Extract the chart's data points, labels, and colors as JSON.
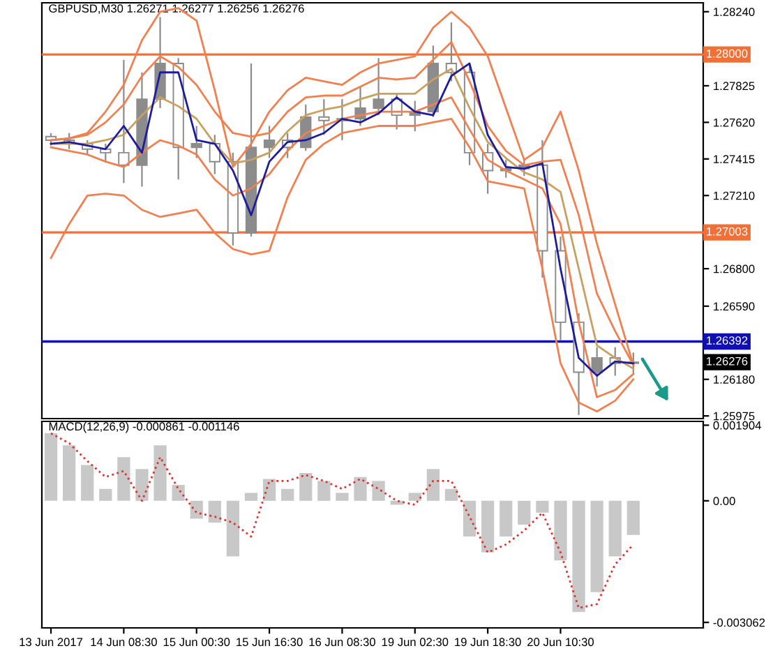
{
  "chart_data": [
    {
      "type": "candlestick",
      "title": "GBPUSD,M30 1.26271 1.26277 1.26256 1.26276",
      "color": "#8c8c8c",
      "categories": [
        null,
        null,
        null,
        null,
        null,
        null,
        null,
        null,
        null,
        null,
        null,
        null,
        null,
        null,
        null,
        null,
        null,
        null,
        null,
        null,
        null,
        null,
        null,
        null,
        null,
        null,
        null,
        null,
        null,
        null,
        null,
        null,
        null
      ],
      "ohlc": [
        [
          1.2754,
          1.2756,
          1.2749,
          1.2752
        ],
        [
          1.2752,
          1.2756,
          1.2747,
          1.275
        ],
        [
          1.275,
          1.2752,
          1.2744,
          1.2747
        ],
        [
          1.2747,
          1.275,
          1.274,
          1.2745
        ],
        [
          1.2745,
          1.2797,
          1.2728,
          1.2738
        ],
        [
          1.2738,
          1.279,
          1.2726,
          1.2775
        ],
        [
          1.2775,
          1.2821,
          1.277,
          1.2795
        ],
        [
          1.2795,
          1.2798,
          1.273,
          1.2748
        ],
        [
          1.2748,
          1.276,
          1.2742,
          1.275
        ],
        [
          1.275,
          1.2755,
          1.2733,
          1.274
        ],
        [
          1.274,
          1.2745,
          1.2693,
          1.27
        ],
        [
          1.27,
          1.2795,
          1.2698,
          1.2748
        ],
        [
          1.2748,
          1.276,
          1.2742,
          1.2752
        ],
        [
          1.2752,
          1.2756,
          1.2742,
          1.2748
        ],
        [
          1.2748,
          1.2772,
          1.2746,
          1.2765
        ],
        [
          1.2765,
          1.2775,
          1.2755,
          1.2763
        ],
        [
          1.2763,
          1.2775,
          1.2752,
          1.2764
        ],
        [
          1.2764,
          1.2782,
          1.276,
          1.277
        ],
        [
          1.277,
          1.2798,
          1.2766,
          1.2775
        ],
        [
          1.2775,
          1.2778,
          1.2758,
          1.2766
        ],
        [
          1.2766,
          1.2774,
          1.2757,
          1.2768
        ],
        [
          1.2768,
          1.2805,
          1.2765,
          1.2795
        ],
        [
          1.2795,
          1.2818,
          1.2785,
          1.279
        ],
        [
          1.279,
          1.2795,
          1.2738,
          1.2745
        ],
        [
          1.2745,
          1.275,
          1.2722,
          1.2735
        ],
        [
          1.2735,
          1.2741,
          1.2731,
          1.2736
        ],
        [
          1.2736,
          1.2742,
          1.2732,
          1.2738
        ],
        [
          1.2738,
          1.2752,
          1.2675,
          1.269
        ],
        [
          1.269,
          1.2698,
          1.264,
          1.265
        ],
        [
          1.265,
          1.2655,
          1.2598,
          1.2622
        ],
        [
          1.2622,
          1.2636,
          1.2614,
          1.263
        ],
        [
          1.263,
          1.2636,
          1.262,
          1.2627
        ],
        [
          1.2627,
          1.2633,
          1.2621,
          1.26276
        ]
      ],
      "series": [
        {
          "type": "line",
          "color": "#f08050",
          "values": [
            1.2752,
            1.2753,
            1.2756,
            1.2768,
            1.2783,
            1.2808,
            1.2824,
            1.2826,
            1.2819,
            1.278,
            1.2737,
            1.275,
            1.2768,
            1.278,
            1.2787,
            1.2785,
            1.2783,
            1.279,
            1.2795,
            1.2797,
            1.2799,
            1.2815,
            1.2824,
            1.2815,
            1.2799,
            1.277,
            1.2741,
            1.2748,
            1.2768,
            1.2735,
            1.2694,
            1.266,
            1.2626
          ]
        },
        {
          "type": "line",
          "color": "#f08050",
          "values": [
            1.2686,
            1.2705,
            1.2721,
            1.2722,
            1.2721,
            1.2713,
            1.2709,
            1.2711,
            1.2713,
            1.27,
            1.2691,
            1.2688,
            1.269,
            1.272,
            1.2741,
            1.275,
            1.2756,
            1.2758,
            1.276,
            1.276,
            1.276,
            1.2762,
            1.2764,
            1.2748,
            1.2729,
            1.2727,
            1.2725,
            1.268,
            1.2627,
            1.2605,
            1.26,
            1.2606,
            1.2618
          ]
        },
        {
          "type": "line",
          "color": "#f08050",
          "values": [
            1.2752,
            1.2753,
            1.2755,
            1.2762,
            1.2772,
            1.2788,
            1.2799,
            1.2793,
            1.2783,
            1.2768,
            1.2756,
            1.2754,
            1.2756,
            1.2768,
            1.2776,
            1.2777,
            1.2777,
            1.2782,
            1.2787,
            1.2786,
            1.2787,
            1.2797,
            1.2807,
            1.2785,
            1.276,
            1.2746,
            1.2738,
            1.274,
            1.2741,
            1.271,
            1.2666,
            1.2645,
            1.2626
          ]
        },
        {
          "type": "line",
          "color": "#f08050",
          "values": [
            1.2748,
            1.2746,
            1.2744,
            1.274,
            1.2737,
            1.2745,
            1.2752,
            1.2749,
            1.2744,
            1.273,
            1.2721,
            1.2725,
            1.2733,
            1.2746,
            1.2756,
            1.276,
            1.2764,
            1.2766,
            1.2768,
            1.2768,
            1.2768,
            1.2772,
            1.2776,
            1.2758,
            1.2741,
            1.2735,
            1.273,
            1.2725,
            1.2705,
            1.265,
            1.2608,
            1.2612,
            1.2621
          ]
        },
        {
          "type": "line",
          "color": "#c8a060",
          "values": [
            1.275,
            1.275,
            1.275,
            1.2752,
            1.2755,
            1.2766,
            1.2776,
            1.2771,
            1.2764,
            1.275,
            1.2739,
            1.2741,
            1.2745,
            1.2757,
            1.2766,
            1.2769,
            1.2771,
            1.2775,
            1.2778,
            1.2778,
            1.2778,
            1.2786,
            1.2792,
            1.277,
            1.2751,
            1.2742,
            1.2734,
            1.273,
            1.2723,
            1.268,
            1.2637,
            1.263,
            1.2624
          ]
        },
        {
          "type": "line",
          "color": "#1c1c9c",
          "values": [
            1.275,
            1.2751,
            1.2749,
            1.2747,
            1.276,
            1.2745,
            1.279,
            1.279,
            1.2752,
            1.275,
            1.2735,
            1.271,
            1.274,
            1.2751,
            1.2752,
            1.2756,
            1.2764,
            1.2762,
            1.2767,
            1.2776,
            1.2768,
            1.2766,
            1.2788,
            1.2795,
            1.2755,
            1.2737,
            1.2736,
            1.2739,
            1.268,
            1.263,
            1.262,
            1.2628,
            1.2627
          ]
        }
      ],
      "ylim": [
        1.2596,
        1.2829
      ],
      "yticks": [
        {
          "value": 1.2824,
          "label": "1.28240"
        },
        1.27825,
        {
          "value": 1.2762,
          "label": "1.27620"
        },
        1.27415,
        {
          "value": 1.2721,
          "label": "1.27210"
        },
        {
          "value": 1.268,
          "label": "1.26800"
        },
        {
          "value": 1.2659,
          "label": "1.26590"
        },
        {
          "value": 1.2618,
          "label": "1.26180"
        },
        1.25975
      ],
      "ref_lines": [
        {
          "axis": "y",
          "value": 1.28,
          "label": "1.28000",
          "color": "#f07038"
        },
        {
          "axis": "y",
          "value": 1.27003,
          "label": "1.27003",
          "color": "#f07038"
        },
        {
          "axis": "y",
          "value": 1.26392,
          "label": "1.26392",
          "color": "#1010b0"
        }
      ],
      "annotations": [
        "1.26276"
      ],
      "tick_labels": "y",
      "grid": false
    },
    {
      "type": "bar",
      "title": "MACD(12,26,9) -0.000861 -0.001146",
      "color": "#c8c8c8",
      "categories": [
        "13 Jun 2017",
        null,
        null,
        null,
        "14 Jun 08:30",
        null,
        null,
        null,
        "15 Jun 00:30",
        null,
        null,
        null,
        "15 Jun 16:30",
        null,
        null,
        null,
        "16 Jun 08:30",
        null,
        null,
        null,
        "19 Jun 02:30",
        null,
        null,
        null,
        "19 Jun 18:30",
        null,
        null,
        null,
        "20 Jun 10:30",
        null,
        null,
        null,
        null
      ],
      "values": [
        0.0017,
        0.0014,
        0.0009,
        0.0003,
        0.0011,
        0.0008,
        0.0014,
        0.0004,
        -0.00045,
        -0.00055,
        -0.0014,
        0.0002,
        0.00055,
        0.0003,
        0.0007,
        0.0005,
        0.0002,
        0.0006,
        0.0005,
        -0.0001,
        0.0002,
        0.0008,
        0.0003,
        -0.0009,
        -0.0013,
        -0.0009,
        -0.0006,
        -0.0003,
        -0.0015,
        -0.0028,
        -0.0023,
        -0.0014,
        -0.00086
      ],
      "series": [
        {
          "type": "line",
          "color": "#e03030",
          "line_style": "dotted",
          "values": [
            0.0017,
            0.00145,
            0.001,
            0.0006,
            0.00075,
            0.0,
            0.0011,
            0.0003,
            -0.0003,
            -0.0004,
            -0.00055,
            -0.0009,
            0.0005,
            0.0005,
            0.00065,
            0.0005,
            0.0003,
            0.00055,
            0.0003,
            0.0,
            -0.0001,
            0.0005,
            0.0005,
            -0.0004,
            -0.0013,
            -0.0011,
            -0.00075,
            -0.0003,
            -0.0013,
            -0.0027,
            -0.0026,
            -0.0016,
            -0.0011
          ]
        }
      ],
      "ylim": [
        -0.0032,
        0.002
      ],
      "yticks": [
        0.001904,
        {
          "value": 0,
          "label": "0.00"
        },
        -0.003062
      ],
      "grid": false
    }
  ]
}
